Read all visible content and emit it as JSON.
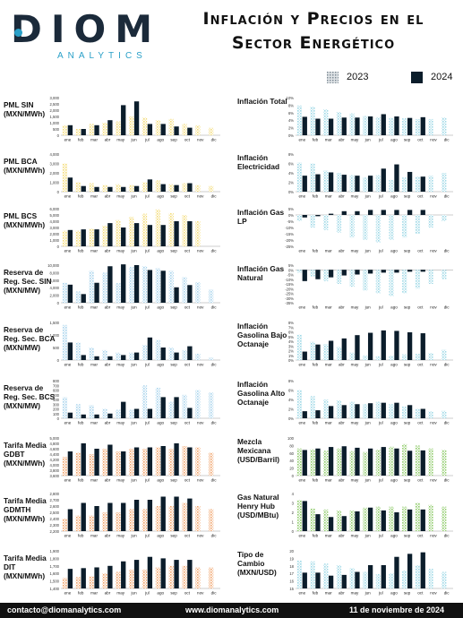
{
  "brand": {
    "name": "DIOM",
    "sub": "ANALYTICS"
  },
  "header": {
    "title_line1": "Inflación y Precios en el",
    "title_line2": "Sector Energético"
  },
  "legend": {
    "y2023": "2023",
    "y2024": "2024"
  },
  "colors": {
    "hatch_dark": "#5b6b78",
    "dark": "#0b1d2b",
    "yellow": "#f3dc7a",
    "blue": "#a9d4ec",
    "pink": "#f7d6c9",
    "orange": "#f0a36a",
    "teal": "#9fd8e6",
    "green": "#8fcb6a"
  },
  "months": [
    "ene",
    "feb",
    "mar",
    "abr",
    "may",
    "jun",
    "jul",
    "ago",
    "sep",
    "oct",
    "nov",
    "dic"
  ],
  "footer": {
    "email": "contacto@diomanalytics.com",
    "web": "www.diomanalytics.com",
    "date": "11 de noviembre de 2024"
  },
  "chart_data": [
    {
      "id": "pml_sin",
      "type": "bar",
      "label": "PML SIN (MXN/MWh)",
      "label_lines": [
        "PML SIN",
        "(MXN/MWh)"
      ],
      "color": "yellow",
      "ylim": [
        0,
        3000
      ],
      "ticks": [
        "0",
        "500",
        "1,000",
        "1,500",
        "2,000",
        "2,500",
        "3,000"
      ],
      "series": [
        {
          "name": "2023",
          "values": [
            800,
            500,
            900,
            1000,
            1100,
            1500,
            1400,
            1200,
            1300,
            900,
            800,
            600
          ]
        },
        {
          "name": "2024",
          "values": [
            800,
            500,
            800,
            1200,
            2400,
            2700,
            900,
            900,
            700,
            600,
            null,
            null
          ]
        }
      ]
    },
    {
      "id": "pml_bca",
      "type": "bar",
      "label": "PML BCA (MXN/MWh)",
      "label_lines": [
        "PML BCA",
        "(MXN/MWh)"
      ],
      "color": "yellow",
      "ylim": [
        0,
        4000
      ],
      "ticks": [
        "0",
        "1,000",
        "2,000",
        "3,000",
        "4,000"
      ],
      "series": [
        {
          "name": "2023",
          "values": [
            3000,
            1000,
            900,
            700,
            800,
            700,
            1000,
            1200,
            800,
            900,
            700,
            600
          ]
        },
        {
          "name": "2024",
          "values": [
            1500,
            600,
            500,
            500,
            500,
            600,
            1300,
            800,
            700,
            900,
            null,
            null
          ]
        }
      ]
    },
    {
      "id": "pml_bcs",
      "type": "bar",
      "label": "PML BCS (MXN/MWh)",
      "label_lines": [
        "PML BCS",
        "(MXN/MWh)"
      ],
      "color": "yellow",
      "ylim": [
        0,
        6000
      ],
      "ticks": [
        "0",
        "1,000",
        "2,000",
        "3,000",
        "4,000",
        "5,000",
        "6,000"
      ],
      "series": [
        {
          "name": "2023",
          "values": [
            2500,
            2500,
            2800,
            3300,
            4200,
            4700,
            5200,
            5900,
            5300,
            5000,
            4000,
            null
          ]
        },
        {
          "name": "2024",
          "values": [
            2600,
            2700,
            2700,
            3700,
            3000,
            3700,
            3400,
            3400,
            4000,
            4000,
            null,
            null
          ]
        }
      ]
    },
    {
      "id": "reserva_sin",
      "type": "bar",
      "label": "Reserva de Reg. Sec. SIN (MXN/MW)",
      "label_lines": [
        "Reserva de",
        "Reg. Sec. SIN",
        "(MXN/MW)"
      ],
      "color": "blue",
      "ylim": [
        0,
        10000
      ],
      "ticks": [
        "0",
        "2,000",
        "4,000",
        "6,000",
        "8,000",
        "10,000"
      ],
      "series": [
        {
          "name": "2023",
          "values": [
            5300,
            3000,
            8500,
            8000,
            5200,
            9500,
            9700,
            9200,
            8500,
            6800,
            5500,
            3500
          ]
        },
        {
          "name": "2024",
          "values": [
            4800,
            2300,
            5300,
            9700,
            10200,
            10000,
            8700,
            8500,
            4100,
            4700,
            null,
            null
          ]
        }
      ]
    },
    {
      "id": "reserva_bca",
      "type": "bar",
      "label": "Reserva de Reg. Sec. BCA (MXN/MW)",
      "label_lines": [
        "Reserva de",
        "Reg. Sec. BCA",
        "(MXN/MW)"
      ],
      "color": "blue",
      "ylim": [
        0,
        1500
      ],
      "ticks": [
        "0",
        "500",
        "1,000",
        "1,500"
      ],
      "series": [
        {
          "name": "2023",
          "values": [
            1400,
            700,
            500,
            400,
            300,
            300,
            600,
            800,
            500,
            400,
            250,
            100
          ]
        },
        {
          "name": "2024",
          "values": [
            700,
            200,
            150,
            150,
            200,
            300,
            900,
            500,
            300,
            550,
            null,
            null
          ]
        }
      ]
    },
    {
      "id": "reserva_bcs",
      "type": "bar",
      "label": "Reserva de Reg. Sec. BCS (MXN/MW)",
      "label_lines": [
        "Reserva de",
        "Reg. Sec. BCS",
        "(MXN/MW)"
      ],
      "color": "blue",
      "ylim": [
        0,
        800
      ],
      "ticks": [
        "0",
        "100",
        "200",
        "300",
        "400",
        "500",
        "600",
        "700",
        "800"
      ],
      "series": [
        {
          "name": "2023",
          "values": [
            450,
            300,
            280,
            200,
            180,
            180,
            700,
            650,
            350,
            500,
            600,
            550
          ]
        },
        {
          "name": "2024",
          "values": [
            120,
            80,
            80,
            100,
            350,
            200,
            200,
            450,
            450,
            220,
            null,
            null
          ]
        }
      ]
    },
    {
      "id": "tarifa_gdbt",
      "type": "bar",
      "label": "Tarifa Media GDBT (MXN/MWh)",
      "label_lines": [
        "Tarifa Media",
        "GDBT",
        "(MXN/MWh)"
      ],
      "color": "orange",
      "ylim": [
        3600,
        5000
      ],
      "ticks": [
        "3,600",
        "3,800",
        "4,000",
        "4,200",
        "4,400",
        "4,600",
        "4,800",
        "5,000"
      ],
      "series": [
        {
          "name": "2023",
          "values": [
            4300,
            4450,
            4400,
            4600,
            4500,
            4600,
            4600,
            4650,
            4600,
            4700,
            4650,
            4450
          ]
        },
        {
          "name": "2024",
          "values": [
            4500,
            4800,
            4600,
            4750,
            4500,
            4650,
            4650,
            4700,
            4800,
            4650,
            null,
            null
          ]
        }
      ]
    },
    {
      "id": "tarifa_gdmth",
      "type": "bar",
      "label": "Tarifa Media GDMTH (MXN/MWh)",
      "label_lines": [
        "Tarifa Media",
        "GDMTH",
        "(MXN/MWh)"
      ],
      "color": "orange",
      "ylim": [
        2200,
        2800
      ],
      "ticks": [
        "2,200",
        "2,300",
        "2,400",
        "2,500",
        "2,600",
        "2,700",
        "2,800"
      ],
      "series": [
        {
          "name": "2023",
          "values": [
            2400,
            2450,
            2450,
            2500,
            2500,
            2550,
            2550,
            2600,
            2600,
            2650,
            2600,
            2550
          ]
        },
        {
          "name": "2024",
          "values": [
            2550,
            2650,
            2600,
            2650,
            2650,
            2700,
            2700,
            2750,
            2750,
            2720,
            null,
            null
          ]
        }
      ]
    },
    {
      "id": "tarifa_dit",
      "type": "bar",
      "label": "Tarifa Media DIT (MXN/MWh)",
      "label_lines": [
        "Tarifa Media",
        "DIT",
        "(MXN/MWh)"
      ],
      "color": "orange",
      "ylim": [
        1400,
        1900
      ],
      "ticks": [
        "1,400",
        "1,500",
        "1,600",
        "1,700",
        "1,800",
        "1,900"
      ],
      "series": [
        {
          "name": "2023",
          "values": [
            1540,
            1550,
            1560,
            1600,
            1620,
            1650,
            1650,
            1680,
            1700,
            1700,
            1680,
            1680
          ]
        },
        {
          "name": "2024",
          "values": [
            1660,
            1670,
            1680,
            1700,
            1760,
            1780,
            1820,
            1800,
            1780,
            1780,
            null,
            null
          ]
        }
      ]
    },
    {
      "id": "infl_total",
      "type": "bar",
      "label": "Inflación Total",
      "label_lines": [
        "Inflación Total"
      ],
      "color": "teal",
      "ylim": [
        0,
        10
      ],
      "ticks": [
        "0%",
        "2%",
        "4%",
        "6%",
        "8%",
        "10%"
      ],
      "series": [
        {
          "name": "2023",
          "values": [
            7.9,
            7.6,
            6.9,
            6.2,
            5.8,
            5.1,
            4.8,
            4.6,
            4.5,
            4.3,
            4.3,
            4.7
          ]
        },
        {
          "name": "2024",
          "values": [
            4.9,
            4.4,
            4.4,
            4.7,
            4.7,
            5.0,
            5.6,
            5.0,
            4.6,
            4.8,
            null,
            null
          ]
        }
      ]
    },
    {
      "id": "infl_elec",
      "type": "bar",
      "label": "Inflación Electricidad",
      "label_lines": [
        "Inflación",
        "Electricidad"
      ],
      "color": "teal",
      "ylim": [
        0,
        8
      ],
      "ticks": [
        "0%",
        "2%",
        "4%",
        "6%",
        "8%"
      ],
      "series": [
        {
          "name": "2023",
          "values": [
            6.2,
            6.0,
            4.5,
            4.0,
            3.5,
            3.0,
            3.5,
            2.5,
            3.0,
            3.2,
            3.4,
            4.0
          ]
        },
        {
          "name": "2024",
          "values": [
            3.4,
            3.7,
            4.1,
            3.6,
            3.4,
            3.4,
            4.9,
            5.8,
            4.2,
            3.2,
            null,
            null
          ]
        }
      ]
    },
    {
      "id": "infl_gas_lp",
      "type": "bar",
      "label": "Inflación Gas LP",
      "label_lines": [
        "Inflación Gas",
        "LP"
      ],
      "color": "teal",
      "ylim": [
        -25,
        5
      ],
      "ticks": [
        "5%",
        "0%",
        "-5%",
        "-10%",
        "-15%",
        "-20%",
        "-25%"
      ],
      "series": [
        {
          "name": "2023",
          "values": [
            -5,
            -10,
            -12,
            -14,
            -18,
            -20,
            -22,
            -20,
            -18,
            -15,
            -10,
            -5
          ]
        },
        {
          "name": "2024",
          "values": [
            -2,
            -1,
            1,
            3,
            3,
            4,
            4,
            4,
            4,
            4,
            null,
            null
          ]
        }
      ]
    },
    {
      "id": "infl_gas_natural",
      "type": "bar",
      "label": "Inflación Gas Natural",
      "label_lines": [
        "Inflación Gas",
        "Natural"
      ],
      "color": "teal",
      "ylim": [
        -35,
        5
      ],
      "ticks": [
        "5%",
        "0%",
        "-5%",
        "-10%",
        "-15%",
        "-20%",
        "-25%",
        "-30%",
        "-35%"
      ],
      "series": [
        {
          "name": "2023",
          "values": [
            -3,
            -7,
            -12,
            -15,
            -18,
            -22,
            -25,
            -28,
            -25,
            -20,
            -15,
            -10
          ]
        },
        {
          "name": "2024",
          "values": [
            -12,
            -10,
            -8,
            -6,
            -5,
            -4,
            -3,
            -3,
            -2,
            -2,
            null,
            null
          ]
        }
      ]
    },
    {
      "id": "infl_gasolina_bajo",
      "type": "bar",
      "label": "Inflación Gasolina Bajo Octanaje",
      "label_lines": [
        "Inflación",
        "Gasolina Bajo",
        "Octanaje"
      ],
      "color": "teal",
      "ylim": [
        0,
        8
      ],
      "ticks": [
        "0%",
        "1%",
        "2%",
        "3%",
        "4%",
        "5%",
        "6%",
        "7%",
        "8%"
      ],
      "series": [
        {
          "name": "2023",
          "values": [
            5.4,
            3.9,
            3.4,
            2.8,
            1.6,
            1.0,
            0.8,
            0.9,
            1.2,
            1.3,
            1.5,
            2.2
          ]
        },
        {
          "name": "2024",
          "values": [
            1.8,
            3.3,
            4.1,
            4.6,
            5.3,
            5.8,
            6.3,
            6.2,
            5.9,
            5.7,
            null,
            null
          ]
        }
      ]
    },
    {
      "id": "infl_gasolina_alto",
      "type": "bar",
      "label": "Inflación Gasolina Alto Octanaje",
      "label_lines": [
        "Inflación",
        "Gasolina Alto",
        "Octanaje"
      ],
      "color": "teal",
      "ylim": [
        0,
        8
      ],
      "ticks": [
        "0%",
        "2%",
        "4%",
        "6%",
        "8%"
      ],
      "series": [
        {
          "name": "2023",
          "values": [
            6.0,
            4.7,
            4.0,
            3.8,
            3.5,
            3.0,
            3.5,
            3.0,
            2.5,
            2.0,
            1.5,
            1.6
          ]
        },
        {
          "name": "2024",
          "values": [
            1.5,
            1.7,
            2.6,
            2.8,
            3.0,
            3.2,
            3.3,
            3.3,
            2.8,
            2.0,
            null,
            null
          ]
        }
      ]
    },
    {
      "id": "mezcla",
      "type": "bar",
      "label": "Mezcla Mexicana (USD/Barril)",
      "label_lines": [
        "Mezcla",
        "Mexicana",
        "(USD/Barril)"
      ],
      "color": "green",
      "ylim": [
        0,
        100
      ],
      "ticks": [
        "0",
        "20",
        "40",
        "60",
        "80",
        "100"
      ],
      "series": [
        {
          "name": "2023",
          "values": [
            72,
            70,
            66,
            72,
            65,
            63,
            69,
            77,
            84,
            80,
            72,
            68
          ]
        },
        {
          "name": "2024",
          "values": [
            68,
            72,
            76,
            78,
            74,
            72,
            76,
            72,
            66,
            67,
            null,
            null
          ]
        }
      ]
    },
    {
      "id": "henry_hub",
      "type": "bar",
      "label": "Gas Natural Henry Hub (USD/MBtu)",
      "label_lines": [
        "Gas Natural",
        "Henry Hub",
        "(USD/MBtu)"
      ],
      "color": "green",
      "ylim": [
        0,
        4
      ],
      "ticks": [
        "0",
        "1",
        "2",
        "3",
        "4"
      ],
      "series": [
        {
          "name": "2023",
          "values": [
            3.3,
            2.4,
            2.3,
            2.2,
            2.2,
            2.5,
            2.6,
            2.6,
            2.6,
            3.0,
            2.8,
            2.6
          ]
        },
        {
          "name": "2024",
          "values": [
            3.2,
            1.8,
            1.5,
            1.6,
            2.1,
            2.5,
            2.2,
            2.0,
            2.3,
            2.3,
            null,
            null
          ]
        }
      ]
    },
    {
      "id": "tipo_cambio",
      "type": "bar",
      "label": "Tipo de Cambio (MXN/USD)",
      "label_lines": [
        "Tipo de Cambio",
        "(MXN/USD)"
      ],
      "color": "teal",
      "ylim": [
        15,
        20
      ],
      "ticks": [
        "15",
        "16",
        "17",
        "18",
        "19",
        "20"
      ],
      "series": [
        {
          "name": "2023",
          "values": [
            18.7,
            18.6,
            18.3,
            18.1,
            17.7,
            17.2,
            16.9,
            17.0,
            17.4,
            18.1,
            17.6,
            17.2
          ]
        },
        {
          "name": "2024",
          "values": [
            17.1,
            17.1,
            16.7,
            16.8,
            17.2,
            18.1,
            18.1,
            19.2,
            19.6,
            19.8,
            null,
            null
          ]
        }
      ]
    }
  ]
}
